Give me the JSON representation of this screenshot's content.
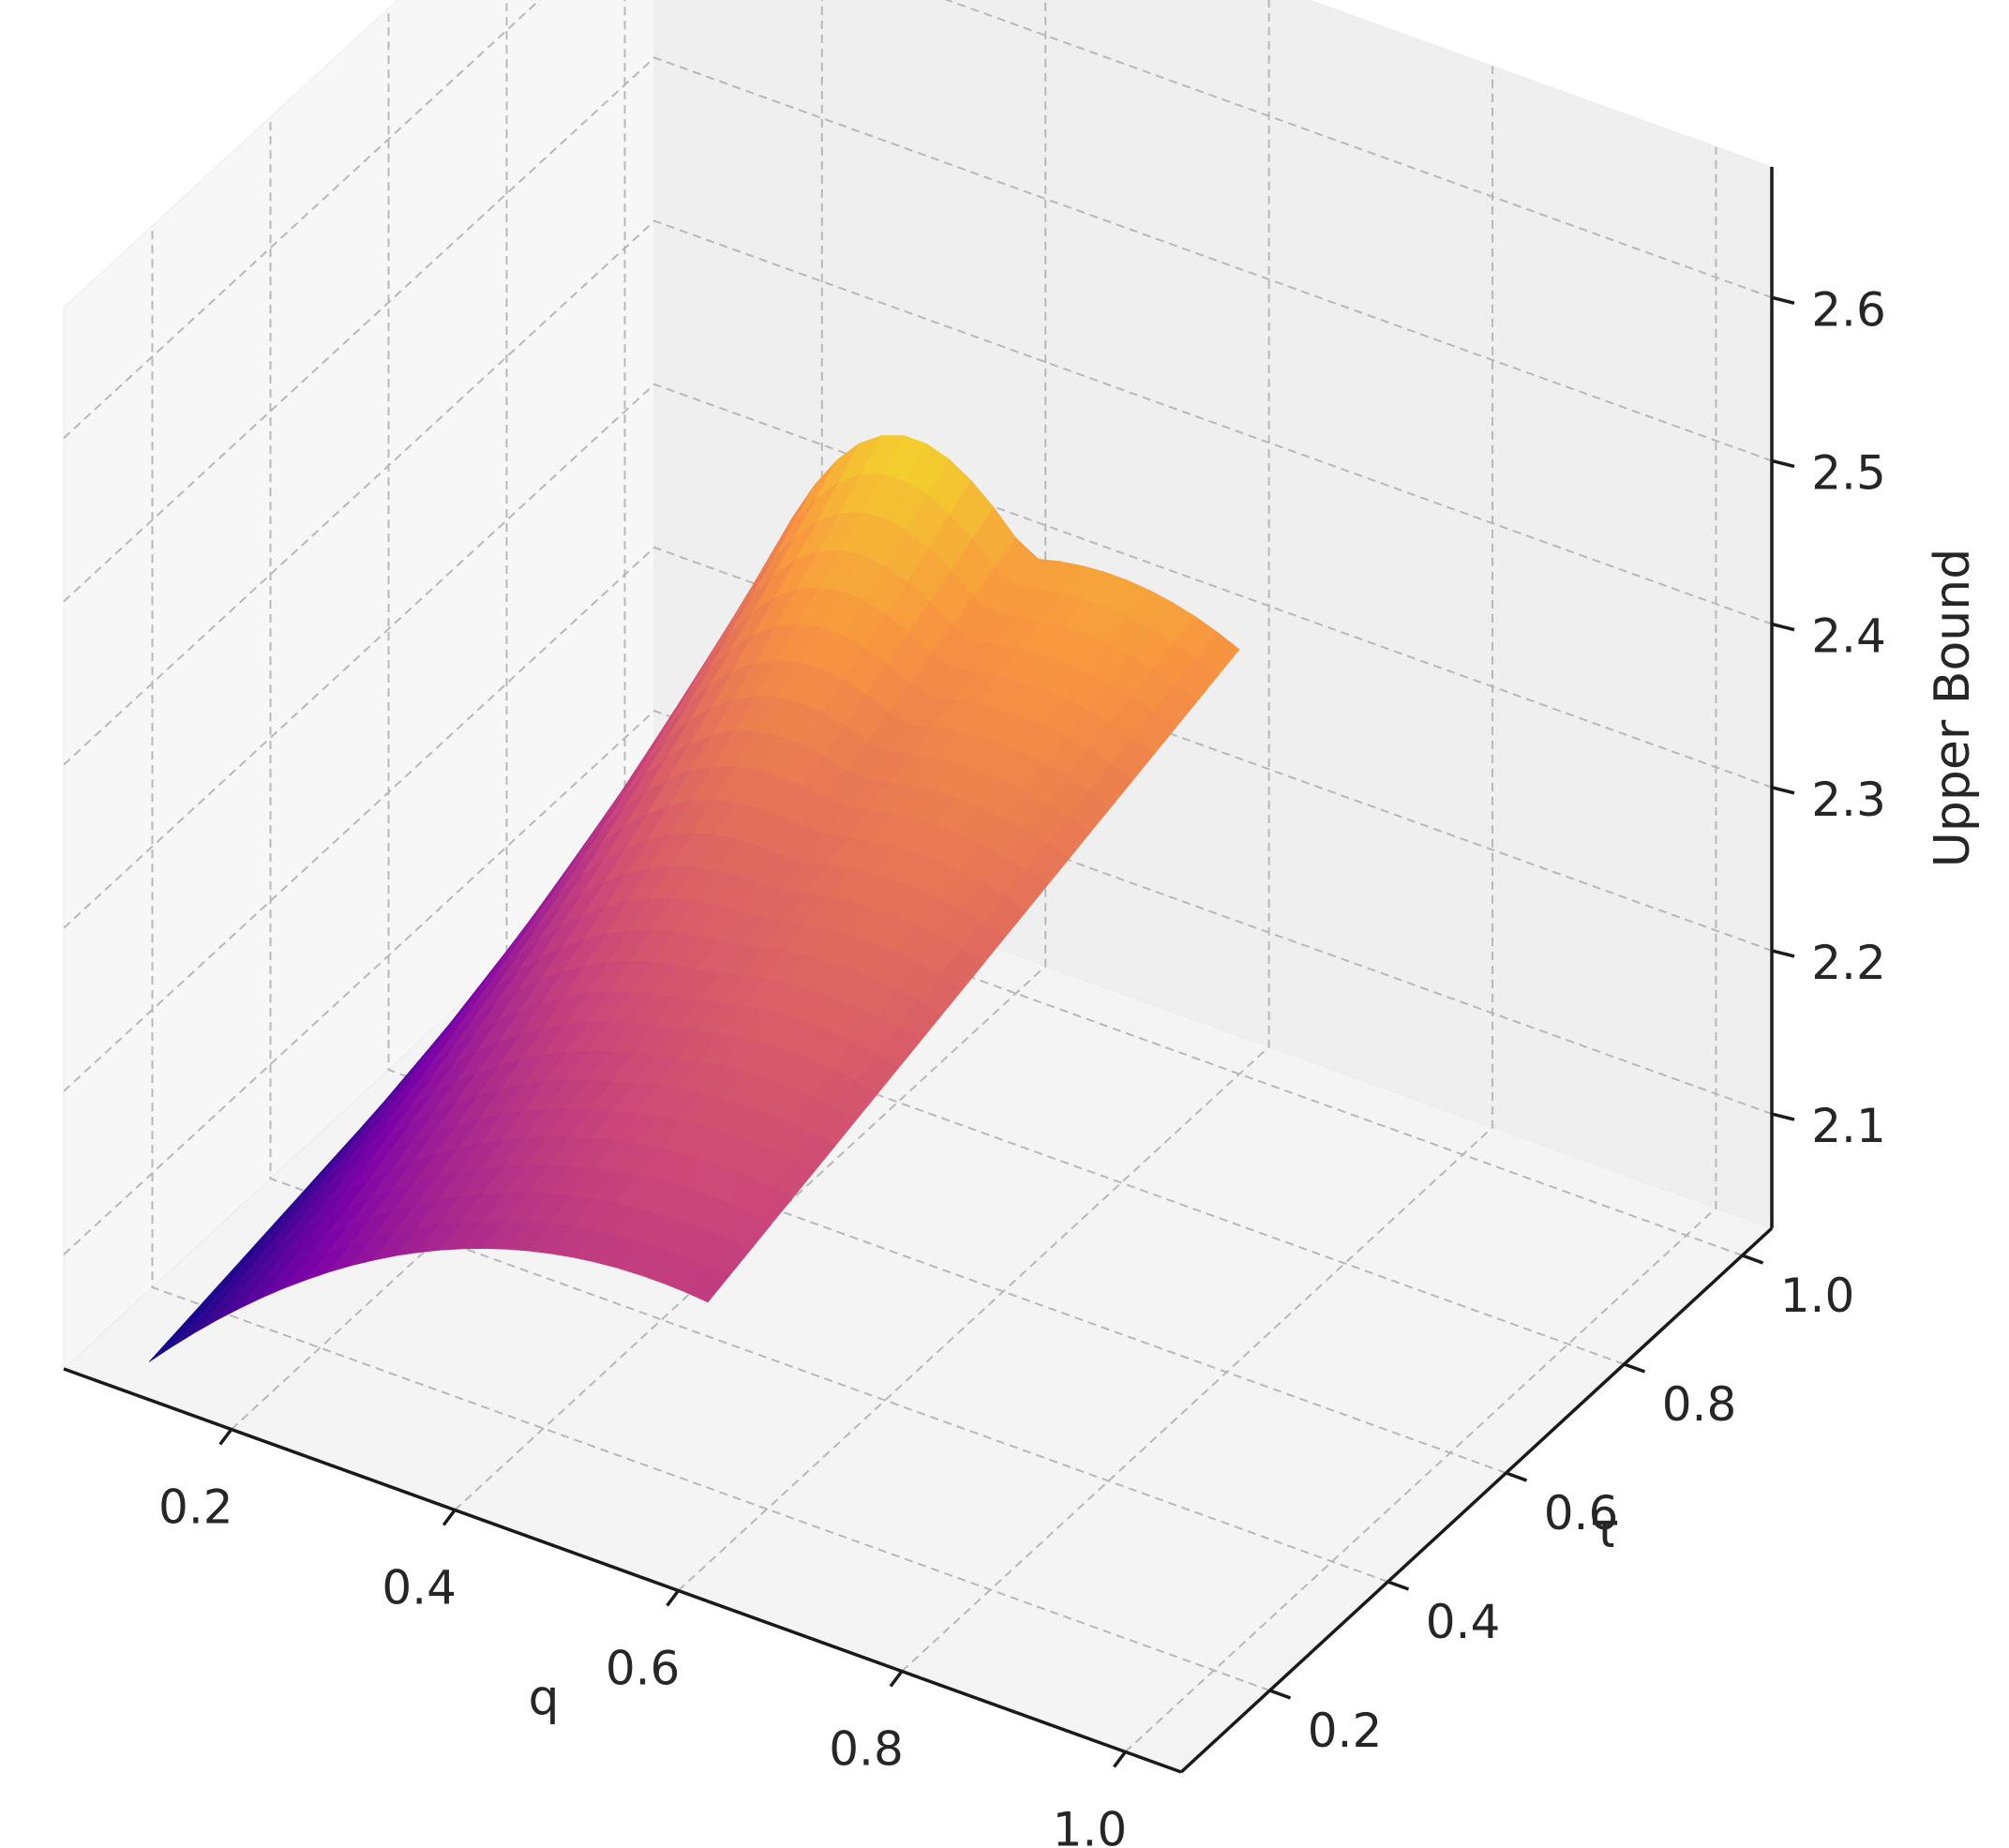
{
  "chart_data": {
    "type": "surface3d",
    "colormap": "plasma",
    "xlabel": "q",
    "ylabel": "τ",
    "zlabel": "Upper Bound",
    "xlim": [
      0.05,
      1.05
    ],
    "ylim": [
      0.05,
      1.05
    ],
    "zlim": [
      2.03,
      2.68
    ],
    "x_ticks": [
      0.2,
      0.4,
      0.6,
      0.8,
      1.0
    ],
    "x_tick_labels": [
      "0.2",
      "0.4",
      "0.6",
      "0.8",
      "1.0"
    ],
    "y_ticks": [
      0.2,
      0.4,
      0.6,
      0.8,
      1.0
    ],
    "y_tick_labels": [
      "0.2",
      "0.4",
      "0.6",
      "0.8",
      "1.0"
    ],
    "z_ticks": [
      2.1,
      2.2,
      2.3,
      2.4,
      2.5,
      2.6
    ],
    "z_tick_labels": [
      "2.1",
      "2.2",
      "2.3",
      "2.4",
      "2.5",
      "2.6"
    ],
    "grid": true,
    "grid_style": "dashed",
    "pane_color": "#f2f2f2",
    "q_range": [
      0.1,
      0.6
    ],
    "tau_range": [
      0.1,
      1.0
    ],
    "grid_size": [
      26,
      26
    ],
    "surface": [
      {
        "q": 0.1,
        "tau": 0.1,
        "z": 2.03
      },
      {
        "q": 0.1,
        "tau": 1.0,
        "z": 2.09
      },
      {
        "q": 0.6,
        "tau": 0.1,
        "z": 2.19
      },
      {
        "q": 0.6,
        "tau": 1.0,
        "z": 2.29
      },
      {
        "q": 0.3,
        "tau": 0.55,
        "z": 2.24
      },
      {
        "q": 0.35,
        "tau": 1.0,
        "z": 2.38
      },
      {
        "q": 0.5,
        "tau": 1.0,
        "z": 2.35
      },
      {
        "q": 0.6,
        "tau": 0.55,
        "z": 2.13
      }
    ],
    "z_min": 2.03,
    "z_max": 2.38
  }
}
